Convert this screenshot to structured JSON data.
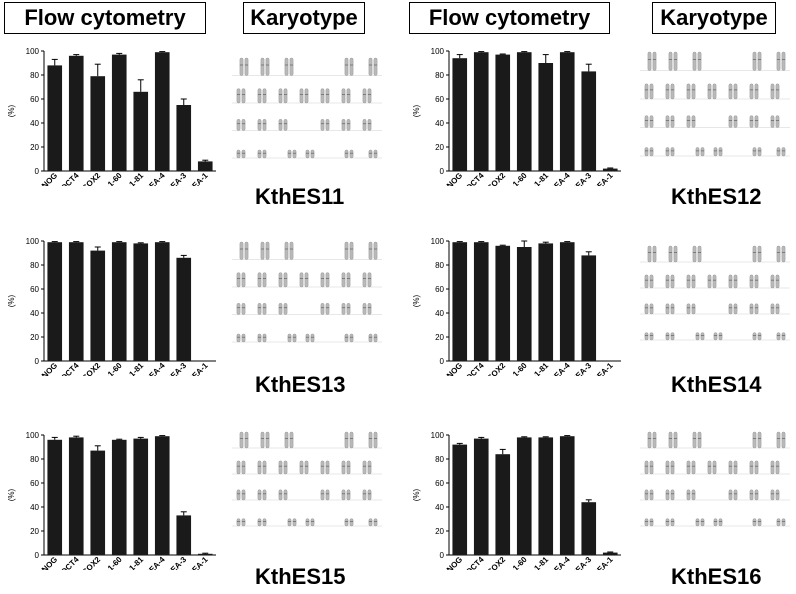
{
  "headers": {
    "flow": "Flow cytometry",
    "karyotype": "Karyotype"
  },
  "chart_data": [
    {
      "type": "bar",
      "cell_line": "KthES11",
      "ylabel": "(%)",
      "ylim": [
        0,
        100
      ],
      "yticks": [
        0,
        20,
        40,
        60,
        80,
        100
      ],
      "categories": [
        "NANOG",
        "OCT4",
        "SOX2",
        "TRA-1-60",
        "TRA-1-81",
        "SSEA-4",
        "SSEA-3",
        "SSEA-1"
      ],
      "values": [
        88,
        96,
        79,
        97,
        66,
        99,
        55,
        8
      ],
      "errors": [
        5,
        1,
        10,
        1,
        10,
        0.5,
        5,
        1
      ]
    },
    {
      "type": "bar",
      "cell_line": "KthES12",
      "ylabel": "(%)",
      "ylim": [
        0,
        100
      ],
      "yticks": [
        0,
        20,
        40,
        60,
        80,
        100
      ],
      "categories": [
        "NANOG",
        "OCT4",
        "SOX2",
        "TRA-1-60",
        "TRA-1-81",
        "SSEA-4",
        "SSEA-3",
        "SSEA-1"
      ],
      "values": [
        94,
        99,
        97,
        99,
        90,
        99,
        83,
        2
      ],
      "errors": [
        3,
        0.5,
        0.5,
        0.5,
        7,
        0.5,
        6,
        0.5
      ]
    },
    {
      "type": "bar",
      "cell_line": "KthES13",
      "ylabel": "(%)",
      "ylim": [
        0,
        100
      ],
      "yticks": [
        0,
        20,
        40,
        60,
        80,
        100
      ],
      "categories": [
        "NANOG",
        "OCT4",
        "SOX2",
        "TRA-1-60",
        "TRA-1-81",
        "SSEA-4",
        "SSEA-3",
        "SSEA-1"
      ],
      "values": [
        99,
        99,
        92,
        99,
        98,
        99,
        86,
        0
      ],
      "errors": [
        0.5,
        0.5,
        3,
        0.5,
        0.5,
        0.5,
        2,
        0
      ]
    },
    {
      "type": "bar",
      "cell_line": "KthES14",
      "ylabel": "(%)",
      "ylim": [
        0,
        100
      ],
      "yticks": [
        0,
        20,
        40,
        60,
        80,
        100
      ],
      "categories": [
        "NANOG",
        "OCT4",
        "SOX2",
        "TRA-1-60",
        "TRA-1-81",
        "SSEA-4",
        "SSEA-3",
        "SSEA-1"
      ],
      "values": [
        99,
        99,
        96,
        95,
        98,
        99,
        88,
        0
      ],
      "errors": [
        0.5,
        0.5,
        0.5,
        5,
        1,
        0.5,
        3,
        0
      ]
    },
    {
      "type": "bar",
      "cell_line": "KthES15",
      "ylabel": "(%)",
      "ylim": [
        0,
        100
      ],
      "yticks": [
        0,
        20,
        40,
        60,
        80,
        100
      ],
      "categories": [
        "NANOG",
        "OCT4",
        "SOX2",
        "TRA-1-60",
        "TRA-1-81",
        "SSEA-4",
        "SSEA-3",
        "SSEA-1"
      ],
      "values": [
        96,
        98,
        87,
        96,
        97,
        99,
        33,
        1
      ],
      "errors": [
        2,
        1,
        4,
        0.5,
        1,
        0.5,
        3,
        0.5
      ]
    },
    {
      "type": "bar",
      "cell_line": "KthES16",
      "ylabel": "(%)",
      "ylim": [
        0,
        100
      ],
      "yticks": [
        0,
        20,
        40,
        60,
        80,
        100
      ],
      "categories": [
        "NANOG",
        "OCT4",
        "SOX2",
        "TRA-1-60",
        "TRA-1-81",
        "SSEA-4",
        "SSEA-3",
        "SSEA-1"
      ],
      "values": [
        92,
        97,
        84,
        98,
        98,
        99,
        44,
        2
      ],
      "errors": [
        1,
        1,
        4,
        0.5,
        0.5,
        0.5,
        2,
        0.5
      ]
    }
  ]
}
